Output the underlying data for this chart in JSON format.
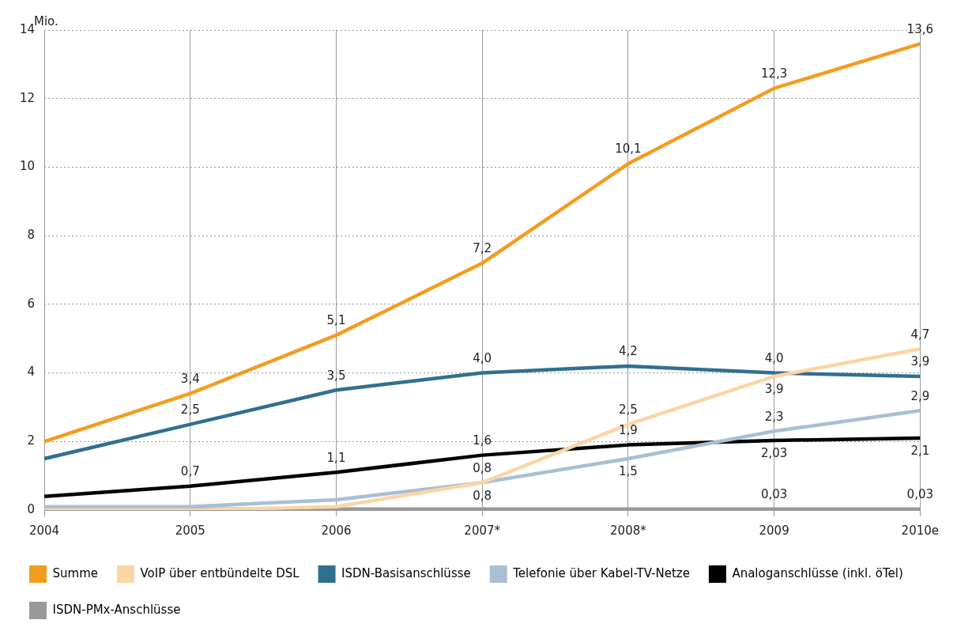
{
  "chart_data": {
    "type": "line",
    "ylabel": "Mio.",
    "categories": [
      "2004",
      "2005",
      "2006",
      "2007*",
      "2008*",
      "2009",
      "2010e"
    ],
    "ylim": [
      0,
      14
    ],
    "yticks": [
      0,
      2,
      4,
      6,
      8,
      10,
      12,
      14
    ],
    "grid": true,
    "legend": "bottom",
    "marker": "none",
    "line_style": "solid",
    "series": [
      {
        "name": "Summe",
        "color": "#f39c1f",
        "values": [
          2.0,
          3.4,
          5.1,
          7.2,
          10.1,
          12.3,
          13.6
        ],
        "value_labels": [
          null,
          "3,4",
          "5,1",
          "7,2",
          "10,1",
          "12,3",
          "13,6"
        ]
      },
      {
        "name": "VoIP über entbündelte DSL",
        "color": "#fcd5a5",
        "values": [
          0,
          0,
          0.1,
          0.8,
          2.5,
          3.9,
          4.7
        ],
        "value_labels": [
          null,
          null,
          null,
          "0,8",
          "2,5",
          "3,9",
          "4,7"
        ]
      },
      {
        "name": "ISDN-Basisanschlüsse",
        "color": "#2f7090",
        "values": [
          1.5,
          2.5,
          3.5,
          4.0,
          4.2,
          4.0,
          3.9
        ],
        "value_labels": [
          null,
          "2,5",
          "3,5",
          "4,0",
          "4,2",
          "4,0",
          "3,9"
        ]
      },
      {
        "name": "Telefonie über Kabel-TV-Netze",
        "color": "#a9bfd3",
        "values": [
          0.1,
          0.1,
          0.3,
          0.8,
          1.5,
          2.3,
          2.9
        ],
        "value_labels": [
          null,
          null,
          null,
          "0,8",
          "1,5",
          "2,3",
          "2,9"
        ]
      },
      {
        "name": "Analoganschlüsse (inkl. öTel)",
        "color": "#000000",
        "values": [
          0.4,
          0.7,
          1.1,
          1.6,
          1.9,
          2.03,
          2.1
        ],
        "value_labels": [
          null,
          "0,7",
          "1,1",
          "1,6",
          "1,9",
          "2,03",
          "2,1"
        ]
      },
      {
        "name": "ISDN-PMx-Anschlüsse",
        "color": "#999999",
        "values": [
          0.03,
          0.03,
          0.03,
          0.03,
          0.03,
          0.03,
          0.03
        ],
        "value_labels": [
          null,
          null,
          null,
          null,
          null,
          "0,03",
          "0,03"
        ]
      }
    ]
  }
}
